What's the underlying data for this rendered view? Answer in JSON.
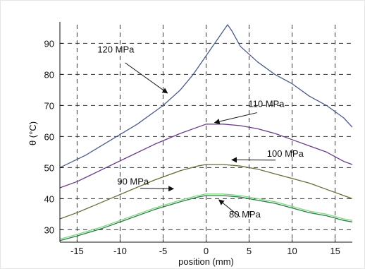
{
  "chart_data": {
    "type": "line",
    "xlabel": "position (mm)",
    "ylabel": "θ (°C)",
    "xlim": [
      -17,
      17
    ],
    "ylim": [
      26,
      96
    ],
    "xticks": [
      -15,
      -10,
      -5,
      0,
      5,
      10,
      15
    ],
    "yticks": [
      30,
      40,
      50,
      60,
      70,
      80,
      90
    ],
    "grid": true,
    "annotations": [
      {
        "text": "120 MPa",
        "label_at": [
          -10.5,
          87
        ],
        "arrow_to": [
          -4.5,
          74
        ]
      },
      {
        "text": "110 MPa",
        "label_at": [
          7.0,
          69.5
        ],
        "arrow_to": [
          1.0,
          64.5
        ]
      },
      {
        "text": "100 MPa",
        "label_at": [
          9.2,
          53.5
        ],
        "arrow_to": [
          3.0,
          52.5
        ]
      },
      {
        "text": "90 MPa",
        "label_at": [
          -8.5,
          44.5
        ],
        "arrow_to": [
          -3.8,
          43.2
        ]
      },
      {
        "text": "80 MPa",
        "label_at": [
          4.5,
          34.0
        ],
        "arrow_to": [
          1.5,
          39.6
        ]
      }
    ],
    "series": [
      {
        "color": "#4a5a8a",
        "x": [
          -17,
          -14,
          -11,
          -8,
          -5,
          -3,
          -1.5,
          0,
          1,
          2,
          2.5,
          3,
          4,
          6,
          8,
          10,
          12,
          14,
          16,
          17
        ],
        "y": [
          50,
          54,
          59,
          64,
          70,
          75,
          80,
          86,
          90,
          94,
          96,
          94,
          89,
          84,
          80,
          77,
          73,
          70,
          66,
          63
        ]
      },
      {
        "color": "#6a3a8a",
        "x": [
          -17,
          -15,
          -12,
          -9,
          -6,
          -3,
          -1,
          0,
          2,
          4,
          6,
          8,
          10,
          12,
          14,
          16,
          17
        ],
        "y": [
          43.5,
          45.5,
          49.5,
          53.5,
          57.5,
          61,
          63,
          64,
          64,
          63.5,
          62.5,
          61,
          59,
          57,
          55,
          52,
          51
        ]
      },
      {
        "color": "#6a6a3a",
        "x": [
          -17,
          -15,
          -12,
          -9,
          -6,
          -3,
          -1,
          0,
          2,
          4,
          6,
          8,
          10,
          12,
          14,
          16,
          17
        ],
        "y": [
          33.5,
          35.5,
          39,
          42.5,
          46,
          49,
          50.5,
          51,
          51,
          50.5,
          49.5,
          48,
          46.5,
          45,
          43,
          41,
          40
        ]
      },
      {
        "color": "#2a7a4a",
        "x": [
          -17,
          -15,
          -12,
          -9,
          -6,
          -3,
          -1,
          0,
          2,
          4,
          6,
          8,
          10,
          12,
          14,
          16,
          17
        ],
        "y": [
          26.5,
          28,
          30.5,
          33.5,
          36.5,
          39,
          40.5,
          41,
          41,
          40.5,
          39.5,
          38.5,
          37,
          35.5,
          34.5,
          33,
          32.5
        ]
      },
      {
        "color": "#7fd87f",
        "x": [
          -17,
          -15,
          -12,
          -9,
          -6,
          -3,
          -1,
          0,
          2,
          4,
          6,
          8,
          10,
          12,
          14,
          16,
          17
        ],
        "y": [
          27,
          28.5,
          31,
          34,
          37,
          39.5,
          41,
          41.5,
          41.5,
          41,
          40,
          39,
          37.5,
          36,
          35,
          33.5,
          33
        ]
      }
    ]
  }
}
